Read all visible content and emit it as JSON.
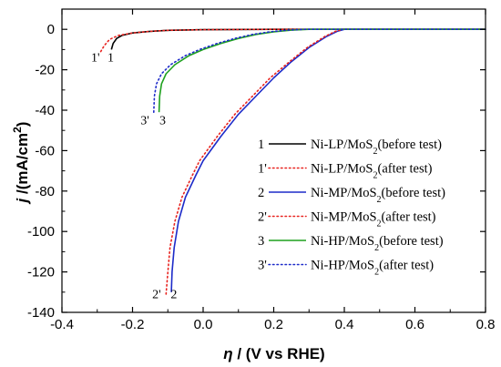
{
  "chart_data": {
    "type": "line",
    "title": "",
    "xlabel_parts": {
      "sym": "η",
      "rest": " / (V vs RHE)"
    },
    "ylabel_parts": {
      "sym": "j",
      "unit": " /(mA/cm",
      "sup": "2",
      "close": ")"
    },
    "xlim": [
      -0.4,
      0.8
    ],
    "ylim": [
      -140,
      10
    ],
    "xticks": [
      -0.4,
      -0.2,
      0.0,
      0.2,
      0.4,
      0.6,
      0.8
    ],
    "xtick_labels": [
      "-0.4",
      "-0.2",
      "0.0",
      "0.2",
      "0.4",
      "0.6",
      "0.8"
    ],
    "yticks": [
      0,
      -20,
      -40,
      -60,
      -80,
      -100,
      -120,
      -140
    ],
    "ytick_labels": [
      "0",
      "-20",
      "-40",
      "-60",
      "-80",
      "-100",
      "-120",
      "-140"
    ],
    "grid": false,
    "legend_position": "right",
    "series": [
      {
        "id": "1",
        "prefix": "Ni-LP/MoS",
        "suffix": "(before test)",
        "color": "#000000",
        "dash": "solid",
        "points": [
          [
            -0.26,
            -10
          ],
          [
            -0.255,
            -7
          ],
          [
            -0.245,
            -4.5
          ],
          [
            -0.23,
            -3
          ],
          [
            -0.2,
            -1.8
          ],
          [
            -0.15,
            -1
          ],
          [
            -0.1,
            -0.5
          ],
          [
            0.0,
            -0.2
          ],
          [
            0.2,
            0
          ],
          [
            0.8,
            0
          ]
        ]
      },
      {
        "id": "1'",
        "prefix": "Ni-LP/MoS",
        "suffix": "(after test)",
        "color": "#e8231f",
        "dash": "dotted",
        "points": [
          [
            -0.29,
            -11
          ],
          [
            -0.28,
            -8
          ],
          [
            -0.265,
            -5
          ],
          [
            -0.24,
            -3
          ],
          [
            -0.2,
            -1.8
          ],
          [
            -0.15,
            -1
          ],
          [
            -0.1,
            -0.5
          ],
          [
            0.0,
            -0.2
          ],
          [
            0.2,
            0
          ],
          [
            0.8,
            0
          ]
        ]
      },
      {
        "id": "2",
        "prefix": "Ni-MP/MoS",
        "suffix": "(before test)",
        "color": "#1d2bc9",
        "dash": "solid",
        "points": [
          [
            -0.09,
            -130
          ],
          [
            -0.088,
            -120
          ],
          [
            -0.082,
            -108
          ],
          [
            -0.07,
            -95
          ],
          [
            -0.05,
            -83
          ],
          [
            -0.02,
            -72
          ],
          [
            0.0,
            -65
          ],
          [
            0.05,
            -53
          ],
          [
            0.1,
            -42
          ],
          [
            0.15,
            -33
          ],
          [
            0.2,
            -24
          ],
          [
            0.25,
            -16
          ],
          [
            0.3,
            -9
          ],
          [
            0.35,
            -3.5
          ],
          [
            0.38,
            -1
          ],
          [
            0.4,
            0
          ],
          [
            0.8,
            0
          ]
        ]
      },
      {
        "id": "2'",
        "prefix": "Ni-MP/MoS",
        "suffix": "(after test)",
        "color": "#e8231f",
        "dash": "dotted",
        "points": [
          [
            -0.105,
            -131
          ],
          [
            -0.1,
            -120
          ],
          [
            -0.094,
            -108
          ],
          [
            -0.08,
            -95
          ],
          [
            -0.06,
            -83
          ],
          [
            -0.03,
            -72
          ],
          [
            -0.01,
            -65
          ],
          [
            0.04,
            -53
          ],
          [
            0.09,
            -42
          ],
          [
            0.14,
            -33
          ],
          [
            0.19,
            -24
          ],
          [
            0.245,
            -16
          ],
          [
            0.295,
            -9
          ],
          [
            0.345,
            -3.5
          ],
          [
            0.375,
            -1
          ],
          [
            0.395,
            0
          ],
          [
            0.8,
            0
          ]
        ]
      },
      {
        "id": "3",
        "prefix": "Ni-HP/MoS",
        "suffix": "(before test)",
        "color": "#1fa11f",
        "dash": "solid",
        "points": [
          [
            -0.125,
            -41
          ],
          [
            -0.123,
            -33
          ],
          [
            -0.118,
            -27
          ],
          [
            -0.105,
            -22
          ],
          [
            -0.08,
            -17.5
          ],
          [
            -0.04,
            -13
          ],
          [
            0.0,
            -10
          ],
          [
            0.05,
            -7
          ],
          [
            0.1,
            -4.5
          ],
          [
            0.15,
            -2.5
          ],
          [
            0.2,
            -1.2
          ],
          [
            0.25,
            -0.4
          ],
          [
            0.3,
            0
          ],
          [
            0.8,
            0
          ]
        ]
      },
      {
        "id": "3'",
        "prefix": "Ni-HP/MoS",
        "suffix": "(after test)",
        "color": "#1d2bc9",
        "dash": "dotted",
        "points": [
          [
            -0.14,
            -41
          ],
          [
            -0.138,
            -33
          ],
          [
            -0.132,
            -27
          ],
          [
            -0.118,
            -22
          ],
          [
            -0.092,
            -17.5
          ],
          [
            -0.05,
            -13
          ],
          [
            -0.01,
            -10
          ],
          [
            0.04,
            -7
          ],
          [
            0.09,
            -4.5
          ],
          [
            0.14,
            -2.5
          ],
          [
            0.19,
            -1.2
          ],
          [
            0.24,
            -0.4
          ],
          [
            0.29,
            0
          ],
          [
            0.8,
            0
          ]
        ]
      }
    ],
    "curve_labels": [
      {
        "text": "1'",
        "x": -0.305,
        "y": -16
      },
      {
        "text": "1",
        "x": -0.262,
        "y": -16
      },
      {
        "text": "3'",
        "x": -0.165,
        "y": -47
      },
      {
        "text": "3",
        "x": -0.115,
        "y": -47
      },
      {
        "text": "2'",
        "x": -0.132,
        "y": -133
      },
      {
        "text": "2",
        "x": -0.083,
        "y": -133
      }
    ]
  }
}
